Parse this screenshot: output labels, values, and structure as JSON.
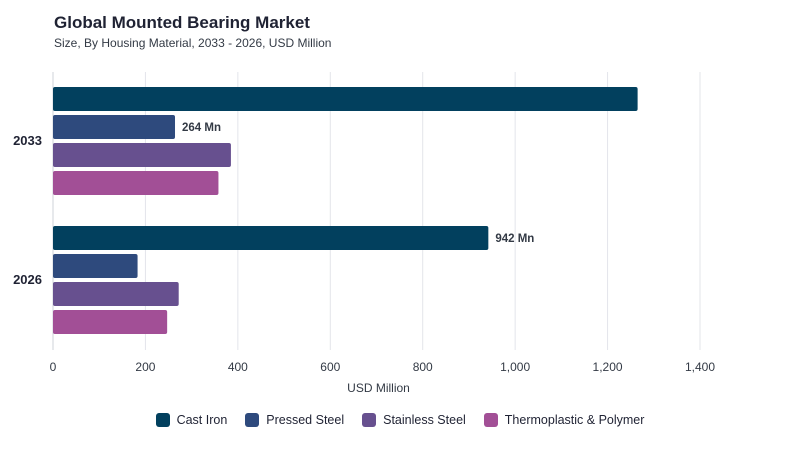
{
  "header": {
    "title": "Global Mounted Bearing Market",
    "subtitle": "Size, By Housing Material, 2033 - 2026, USD Million"
  },
  "chart_data": {
    "type": "bar",
    "orientation": "horizontal",
    "categories": [
      "2033",
      "2026"
    ],
    "series": [
      {
        "name": "Cast Iron",
        "color": "#02405e",
        "values": [
          1265,
          942
        ]
      },
      {
        "name": "Pressed Steel",
        "color": "#2e4a7d",
        "values": [
          264,
          183
        ]
      },
      {
        "name": "Stainless Steel",
        "color": "#67508f",
        "values": [
          385,
          272
        ]
      },
      {
        "name": "Thermoplastic & Polymer",
        "color": "#a24f96",
        "values": [
          358,
          247
        ]
      }
    ],
    "data_labels": [
      {
        "category": "2033",
        "series": "Pressed Steel",
        "text": "264 Mn"
      },
      {
        "category": "2026",
        "series": "Cast Iron",
        "text": "942 Mn"
      }
    ],
    "xlabel": "USD Million",
    "xlim": [
      0,
      1400
    ],
    "xticks": [
      0,
      200,
      400,
      600,
      800,
      1000,
      1200,
      1400
    ],
    "xtick_labels": [
      "0",
      "200",
      "400",
      "600",
      "800",
      "1,000",
      "1,200",
      "1,400"
    ],
    "grid": "vertical",
    "legend_position": "bottom"
  }
}
